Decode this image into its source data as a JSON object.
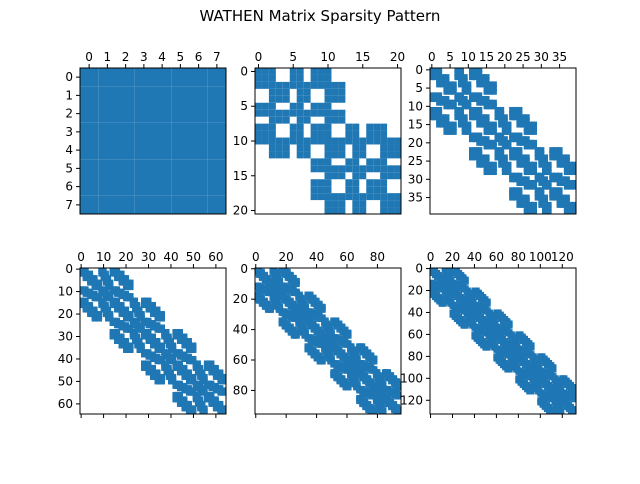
{
  "figure": {
    "title": "WATHEN Matrix Sparsity Pattern",
    "marker_color": "#1f77b4"
  },
  "chart_data": [
    {
      "type": "spy",
      "matrix": "wathen",
      "nx": 1,
      "ny": 1,
      "size": 8,
      "xlim": [
        -0.5,
        7.5
      ],
      "ylim": [
        7.5,
        -0.5
      ],
      "xticks": [
        0,
        1,
        2,
        3,
        4,
        5,
        6,
        7
      ],
      "yticks": [
        0,
        1,
        2,
        3,
        4,
        5,
        6,
        7
      ],
      "xticklabels": [
        "0",
        "1",
        "2",
        "3",
        "4",
        "5",
        "6",
        "7"
      ],
      "yticklabels": [
        "0",
        "1",
        "2",
        "3",
        "4",
        "5",
        "6",
        "7"
      ]
    },
    {
      "type": "spy",
      "matrix": "wathen",
      "nx": 2,
      "ny": 2,
      "size": 21,
      "xlim": [
        -0.5,
        20.5
      ],
      "ylim": [
        20.5,
        -0.5
      ],
      "xticks": [
        0,
        5,
        10,
        15,
        20
      ],
      "yticks": [
        0,
        5,
        10,
        15,
        20
      ],
      "xticklabels": [
        "0",
        "5",
        "10",
        "15",
        "20"
      ],
      "yticklabels": [
        "0",
        "5",
        "10",
        "15",
        "20"
      ]
    },
    {
      "type": "spy",
      "matrix": "wathen",
      "nx": 3,
      "ny": 3,
      "size": 40,
      "xlim": [
        -0.5,
        39.5
      ],
      "ylim": [
        39.5,
        -0.5
      ],
      "xticks": [
        0,
        5,
        10,
        15,
        20,
        25,
        30,
        35
      ],
      "yticks": [
        0,
        5,
        10,
        15,
        20,
        25,
        30,
        35
      ],
      "xticklabels": [
        "0",
        "5",
        "10",
        "15",
        "20",
        "25",
        "30",
        "35"
      ],
      "yticklabels": [
        "0",
        "5",
        "10",
        "15",
        "20",
        "25",
        "30",
        "35"
      ]
    },
    {
      "type": "spy",
      "matrix": "wathen",
      "nx": 4,
      "ny": 4,
      "size": 65,
      "xlim": [
        -0.5,
        64.5
      ],
      "ylim": [
        64.5,
        -0.5
      ],
      "xticks": [
        0,
        10,
        20,
        30,
        40,
        50,
        60
      ],
      "yticks": [
        0,
        10,
        20,
        30,
        40,
        50,
        60
      ],
      "xticklabels": [
        "0",
        "10",
        "20",
        "30",
        "40",
        "50",
        "60"
      ],
      "yticklabels": [
        "0",
        "10",
        "20",
        "30",
        "40",
        "50",
        "60"
      ],
      "bottom_ticks": true
    },
    {
      "type": "spy",
      "matrix": "wathen",
      "nx": 5,
      "ny": 5,
      "size": 96,
      "xlim": [
        -0.5,
        95.5
      ],
      "ylim": [
        95.5,
        -0.5
      ],
      "xticks": [
        0,
        20,
        40,
        60,
        80
      ],
      "yticks": [
        0,
        20,
        40,
        60,
        80
      ],
      "xticklabels": [
        "0",
        "20",
        "40",
        "60",
        "80"
      ],
      "yticklabels": [
        "0",
        "20",
        "40",
        "60",
        "80"
      ],
      "bottom_ticks": true
    },
    {
      "type": "spy",
      "matrix": "wathen",
      "nx": 6,
      "ny": 6,
      "size": 133,
      "xlim": [
        -0.5,
        132.5
      ],
      "ylim": [
        132.5,
        -0.5
      ],
      "xticks": [
        0,
        20,
        40,
        60,
        80,
        100,
        120
      ],
      "yticks": [
        0,
        20,
        40,
        60,
        80,
        100,
        120
      ],
      "xticklabels": [
        "0",
        "20",
        "40",
        "60",
        "80",
        "100",
        "120"
      ],
      "yticklabels": [
        "0",
        "20",
        "40",
        "60",
        "80",
        "100",
        "120"
      ],
      "bottom_ticks": true
    }
  ]
}
